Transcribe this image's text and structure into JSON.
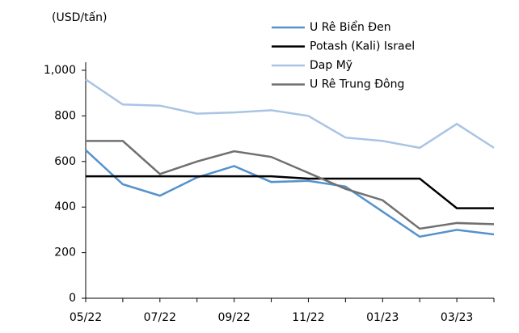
{
  "chart_data": {
    "type": "line",
    "y_axis_label": "(USD/tấn)",
    "categories": [
      "05/22",
      null,
      "07/22",
      null,
      "09/22",
      null,
      "11/22",
      null,
      "01/23",
      null,
      "03/23",
      null
    ],
    "series": [
      {
        "name": "U Rê Biển Đen",
        "color": "#5592cc",
        "values": [
          650,
          500,
          450,
          530,
          580,
          510,
          515,
          490,
          380,
          270,
          300,
          280
        ]
      },
      {
        "name": "Potash (Kali) Israel",
        "color": "#000000",
        "values": [
          535,
          535,
          535,
          535,
          535,
          535,
          525,
          525,
          525,
          525,
          395,
          395
        ]
      },
      {
        "name": "Dap Mỹ",
        "color": "#a9c4e4",
        "values": [
          960,
          850,
          845,
          810,
          815,
          825,
          800,
          705,
          690,
          660,
          765,
          660
        ]
      },
      {
        "name": "U Rê Trung Đông",
        "color": "#707070",
        "values": [
          690,
          690,
          545,
          600,
          645,
          620,
          550,
          480,
          430,
          305,
          330,
          325
        ]
      }
    ],
    "ylim": [
      0,
      1000
    ],
    "yticks": [
      0,
      200,
      400,
      600,
      800,
      {
        "value": 1000,
        "label": "1,000"
      }
    ],
    "grid": false,
    "legend": "top-right"
  }
}
